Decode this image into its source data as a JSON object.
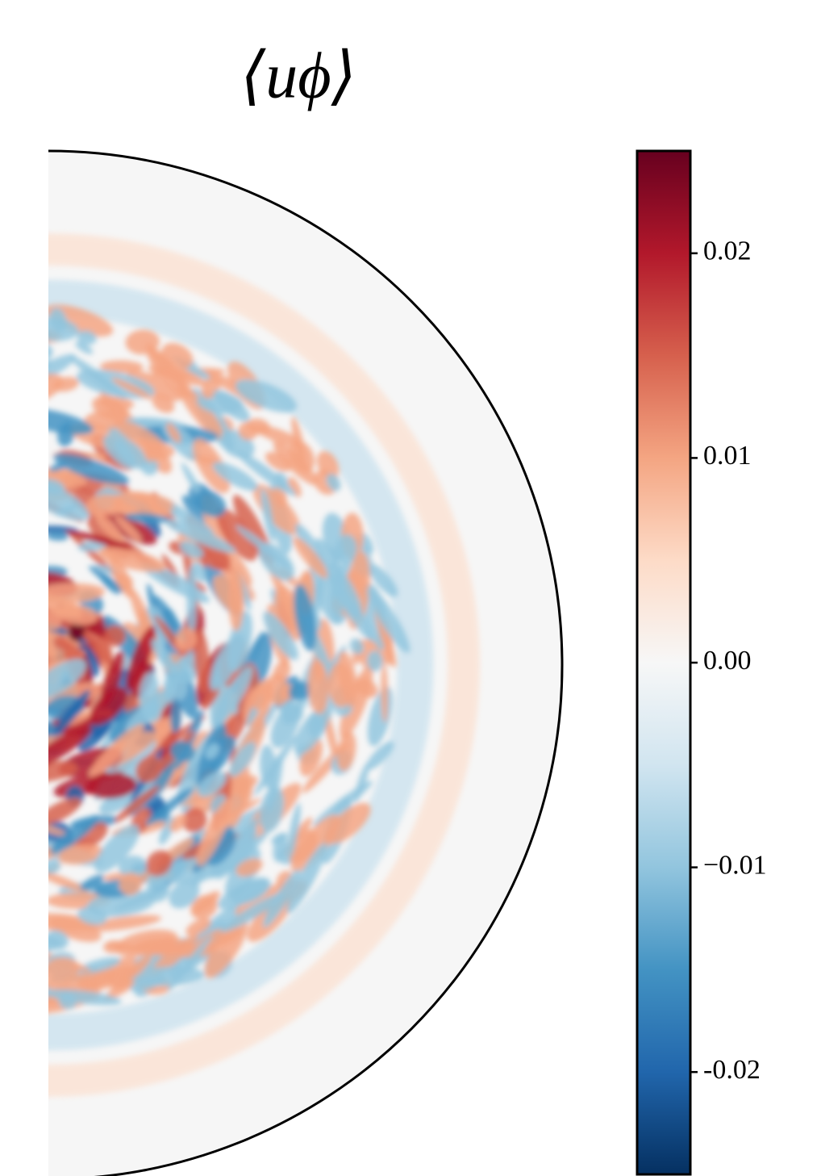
{
  "chart_data": {
    "type": "heatmap",
    "title": "⟨uϕ⟩",
    "colormap": "RdBu_r",
    "clim": [
      -0.025,
      0.025
    ],
    "cticks": [
      -0.02,
      {
        "value": -0.01,
        "label": "−0.01"
      },
      {
        "value": 0,
        "label": "0.00"
      },
      0.01,
      0.02
    ]
  }
}
